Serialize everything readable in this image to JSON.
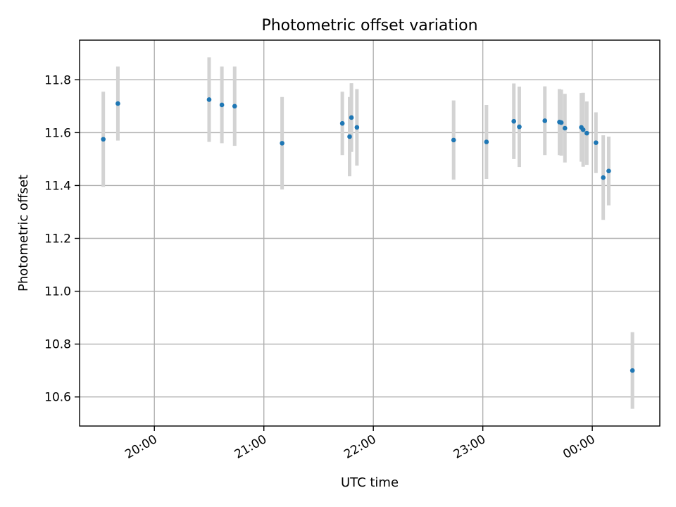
{
  "chart_data": {
    "type": "scatter",
    "title": "Photometric offset variation",
    "xlabel": "UTC time",
    "ylabel": "Photometric offset",
    "x_axis": {
      "kind": "time",
      "xlim": [
        "19:19",
        "00:37"
      ],
      "ticks": [
        "20:00",
        "21:00",
        "22:00",
        "23:00",
        "00:00"
      ]
    },
    "y_axis": {
      "ylim": [
        10.49,
        11.95
      ],
      "ticks": [
        10.6,
        10.8,
        11.0,
        11.2,
        11.4,
        11.6,
        11.8
      ]
    },
    "grid": true,
    "colors": {
      "point": "#1f77b4",
      "errorbar": "#d3d3d3"
    },
    "points": [
      {
        "t": "19:32",
        "y": 11.575,
        "err": 0.18
      },
      {
        "t": "19:40",
        "y": 11.71,
        "err": 0.14
      },
      {
        "t": "20:30",
        "y": 11.725,
        "err": 0.16
      },
      {
        "t": "20:37",
        "y": 11.705,
        "err": 0.145
      },
      {
        "t": "20:44",
        "y": 11.7,
        "err": 0.15
      },
      {
        "t": "21:10",
        "y": 11.56,
        "err": 0.175
      },
      {
        "t": "21:43",
        "y": 11.635,
        "err": 0.12
      },
      {
        "t": "21:47",
        "y": 11.585,
        "err": 0.15
      },
      {
        "t": "21:48",
        "y": 11.657,
        "err": 0.13
      },
      {
        "t": "21:51",
        "y": 11.62,
        "err": 0.145
      },
      {
        "t": "22:44",
        "y": 11.572,
        "err": 0.15
      },
      {
        "t": "23:02",
        "y": 11.565,
        "err": 0.14
      },
      {
        "t": "23:17",
        "y": 11.643,
        "err": 0.143
      },
      {
        "t": "23:20",
        "y": 11.622,
        "err": 0.152
      },
      {
        "t": "23:34",
        "y": 11.645,
        "err": 0.13
      },
      {
        "t": "23:42",
        "y": 11.64,
        "err": 0.125
      },
      {
        "t": "23:43",
        "y": 11.638,
        "err": 0.125
      },
      {
        "t": "23:45",
        "y": 11.617,
        "err": 0.13
      },
      {
        "t": "23:54",
        "y": 11.62,
        "err": 0.13
      },
      {
        "t": "23:55",
        "y": 11.611,
        "err": 0.14
      },
      {
        "t": "23:57",
        "y": 11.598,
        "err": 0.12
      },
      {
        "t": "00:02",
        "y": 11.562,
        "err": 0.115
      },
      {
        "t": "00:06",
        "y": 11.43,
        "err": 0.16
      },
      {
        "t": "00:09",
        "y": 11.455,
        "err": 0.13
      },
      {
        "t": "00:22",
        "y": 10.7,
        "err": 0.145
      }
    ]
  }
}
